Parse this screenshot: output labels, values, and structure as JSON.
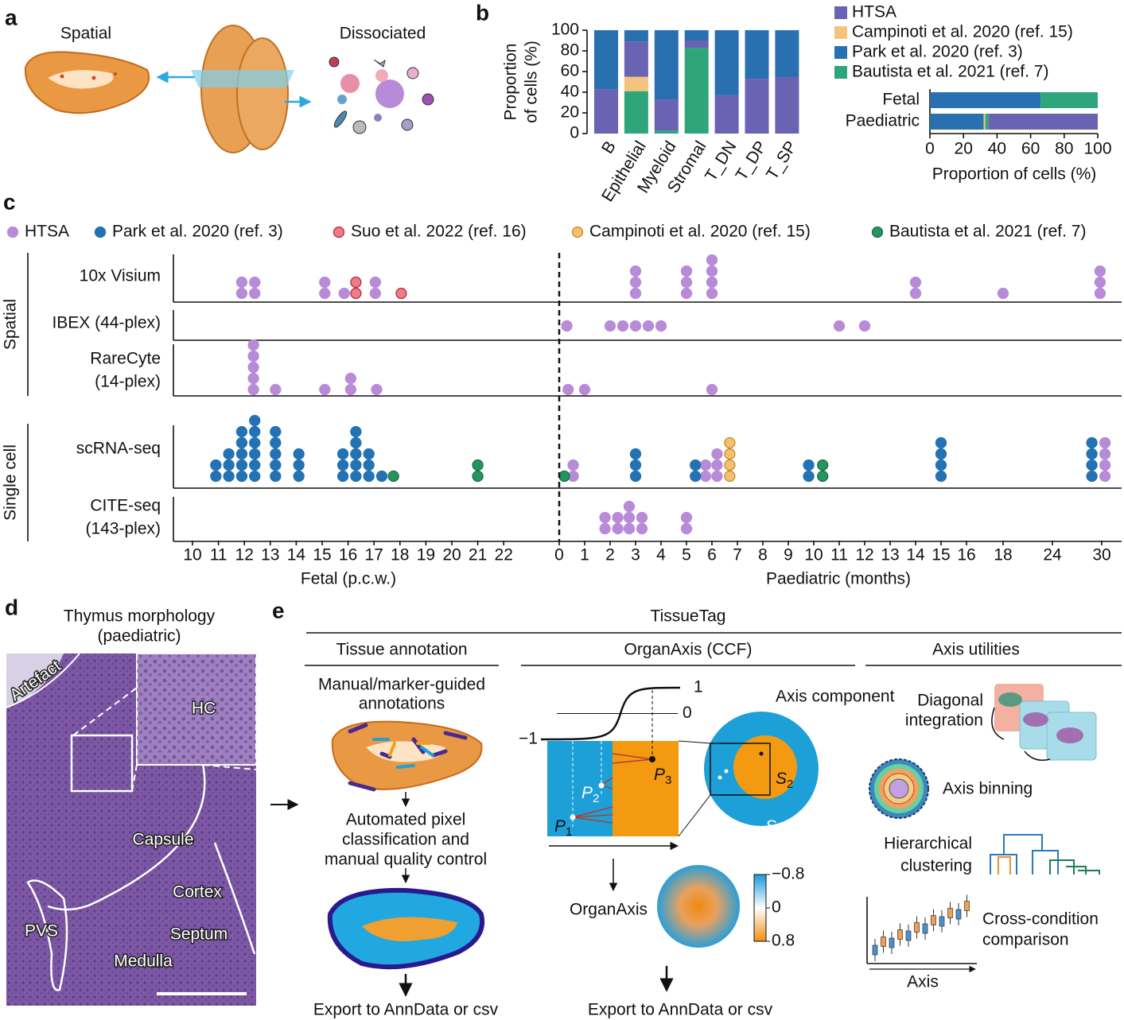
{
  "panel_labels": {
    "a": "a",
    "b": "b",
    "c": "c",
    "d": "d",
    "e": "e"
  },
  "panel_a": {
    "spatial": "Spatial",
    "dissociated": "Dissociated"
  },
  "chart_data": [
    {
      "type": "bar",
      "stacked": true,
      "ylabel": [
        "Proportion",
        "of cells (%)"
      ],
      "categories": [
        "B",
        "Epithelial",
        "Myeloid",
        "Stromal",
        "T_DN",
        "T_DP",
        "T_SP"
      ],
      "series": [
        {
          "name": "HTSA",
          "color": "#6a62b3",
          "values": [
            43,
            34,
            30,
            7,
            37,
            53,
            55
          ]
        },
        {
          "name": "Campinoti et al. 2020 (ref. 15)",
          "color": "#f6c37f",
          "values": [
            0,
            14,
            0,
            0,
            0,
            0,
            0
          ]
        },
        {
          "name": "Park et al. 2020 (ref. 3)",
          "color": "#2870b0",
          "values": [
            57,
            11,
            67,
            10,
            63,
            47,
            45
          ]
        },
        {
          "name": "Bautista et al. 2021 (ref. 7)",
          "color": "#2ea57a",
          "values": [
            0,
            41,
            3,
            83,
            0,
            0,
            0
          ]
        }
      ],
      "ylim": [
        0,
        100
      ],
      "yticks": [
        0,
        20,
        40,
        60,
        80,
        100
      ]
    },
    {
      "type": "hbar",
      "stacked": true,
      "categories": [
        "Fetal",
        "Paediatric"
      ],
      "xlabel": "Proportion of cells (%)",
      "series": [
        {
          "color": "#2870b0",
          "values": [
            66,
            32
          ]
        },
        {
          "color": "#f6c37f",
          "values": [
            0,
            1
          ]
        },
        {
          "color": "#2ea57a",
          "values": [
            34,
            2
          ]
        },
        {
          "color": "#6a62b3",
          "values": [
            0,
            65
          ]
        }
      ],
      "xlim": [
        0,
        100
      ],
      "xticks": [
        0,
        20,
        40,
        60,
        80,
        100
      ]
    },
    {
      "type": "dot",
      "series": [
        {
          "name": "HTSA",
          "color": "#b88bd8",
          "edge": "#b88bd8"
        },
        {
          "name": "Park et al. 2020 (ref. 3)",
          "color": "#2272b4",
          "edge": "#2272b4"
        },
        {
          "name": "Suo et al. 2022 (ref. 16)",
          "color": "#f07a86",
          "edge": "#b0303a"
        },
        {
          "name": "Campinoti et al. 2020 (ref. 15)",
          "color": "#f5c070",
          "edge": "#c98a20"
        },
        {
          "name": "Bautista et al. 2021 (ref. 7)",
          "color": "#239660",
          "edge": "#1a6e45"
        }
      ],
      "groups": [
        {
          "label": "Spatial",
          "rows": [
            {
              "label": [
                "10x Visium"
              ],
              "fetal": [
                [
                  [
                    11.9,
                    2
                  ],
                  [
                    12.4,
                    2
                  ],
                  [
                    15.1,
                    2
                  ],
                  [
                    15.85,
                    1
                  ],
                  [
                    17.05,
                    2
                  ]
                ],
                [],
                [
                  [
                    16.3,
                    2
                  ],
                  [
                    18.05,
                    1
                  ]
                ],
                [],
                []
              ],
              "paediatric": [
                [
                  [
                    3,
                    3
                  ],
                  [
                    5,
                    3
                  ],
                  [
                    6,
                    4
                  ],
                  [
                    14,
                    2
                  ],
                  [
                    18,
                    1
                  ],
                  [
                    29.8,
                    3
                  ]
                ],
                [],
                [],
                [],
                []
              ]
            },
            {
              "label": [
                "IBEX (44-plex)"
              ],
              "fetal": [
                [],
                [],
                [],
                [],
                []
              ],
              "paediatric": [
                [
                  [
                    0.3,
                    1
                  ],
                  [
                    2,
                    1
                  ],
                  [
                    2.5,
                    1
                  ],
                  [
                    3,
                    1
                  ],
                  [
                    3.5,
                    1
                  ],
                  [
                    4,
                    1
                  ],
                  [
                    11,
                    1
                  ],
                  [
                    12,
                    1
                  ]
                ],
                [],
                [],
                [],
                []
              ]
            },
            {
              "label": [
                "RareCyte",
                "(14-plex)"
              ],
              "fetal": [
                [
                  [
                    12.35,
                    5
                  ],
                  [
                    13.2,
                    1
                  ],
                  [
                    15.1,
                    1
                  ],
                  [
                    16.1,
                    2
                  ],
                  [
                    17.1,
                    1
                  ]
                ],
                [],
                [],
                [],
                []
              ],
              "paediatric": [
                [
                  [
                    0.35,
                    1
                  ],
                  [
                    1,
                    1
                  ],
                  [
                    6,
                    1
                  ]
                ],
                [],
                [],
                [],
                []
              ]
            }
          ]
        },
        {
          "label": "Single cell",
          "rows": [
            {
              "label": [
                "scRNA-seq"
              ],
              "fetal": [
                [],
                [
                  [
                    10.9,
                    2
                  ],
                  [
                    11.4,
                    3
                  ],
                  [
                    11.9,
                    5
                  ],
                  [
                    12.4,
                    6
                  ],
                  [
                    13.2,
                    5
                  ],
                  [
                    14.1,
                    3
                  ],
                  [
                    15.8,
                    3
                  ],
                  [
                    16.3,
                    5
                  ],
                  [
                    16.8,
                    3
                  ],
                  [
                    17.3,
                    1
                  ]
                ],
                [],
                [],
                [
                  [
                    17.75,
                    1
                  ],
                  [
                    21,
                    2
                  ]
                ]
              ],
              "paediatric": [
                [
                  [
                    0.55,
                    2
                  ],
                  [
                    5.75,
                    2
                  ],
                  [
                    6.2,
                    3
                  ],
                  [
                    30.4,
                    4
                  ]
                ],
                [
                  [
                    3,
                    3
                  ],
                  [
                    5.35,
                    2
                  ],
                  [
                    9.8,
                    2
                  ],
                  [
                    15,
                    4
                  ],
                  [
                    28.8,
                    4
                  ]
                ],
                [],
                [
                  [
                    6.7,
                    4
                  ]
                ],
                [
                  [
                    0.2,
                    1
                  ],
                  [
                    10.35,
                    2
                  ]
                ]
              ]
            },
            {
              "label": [
                "CITE-seq",
                "(143-plex)"
              ],
              "fetal": [
                [],
                [],
                [],
                [],
                []
              ],
              "paediatric": [
                [
                  [
                    1.8,
                    2
                  ],
                  [
                    2.3,
                    2
                  ],
                  [
                    2.75,
                    3
                  ],
                  [
                    3.25,
                    2
                  ],
                  [
                    5,
                    2
                  ]
                ],
                [],
                [],
                [],
                []
              ]
            }
          ]
        }
      ],
      "fetal_axis": {
        "label": "Fetal (p.c.w.)",
        "ticks": [
          10,
          11,
          12,
          13,
          14,
          15,
          16,
          17,
          18,
          19,
          20,
          21,
          22
        ]
      },
      "paediatric_axis": {
        "label": "Paediatric (months)",
        "ticks": [
          0,
          1,
          2,
          3,
          4,
          5,
          6,
          7,
          8,
          9,
          10,
          11,
          12,
          13,
          14,
          15,
          16,
          18,
          24,
          30
        ]
      }
    }
  ],
  "panel_d": {
    "title": [
      "Thymus morphology",
      "(paediatric)"
    ],
    "labels": {
      "artefact": "Artefact",
      "hc": "HC",
      "capsule": "Capsule",
      "cortex": "Cortex",
      "pvs": "PVS",
      "septum": "Septum",
      "medulla": "Medulla"
    }
  },
  "panel_e": {
    "title": "TissueTag",
    "sections": [
      "Tissue annotation",
      "OrganAxis (CCF)",
      "Axis utilities"
    ],
    "annotation": {
      "step1": [
        "Manual/marker-guided",
        "annotations"
      ],
      "step2": [
        "Automated pixel",
        "classification and",
        "manual quality control"
      ],
      "export": "Export to AnnData or csv"
    },
    "organaxis": {
      "component": "Axis component",
      "curve_ticks": [
        1,
        0,
        {
          "value": -1,
          "label": "−1"
        }
      ],
      "points": [
        {
          "main": "P",
          "sub": "1"
        },
        {
          "main": "P",
          "sub": "2"
        },
        {
          "main": "P",
          "sub": "3"
        }
      ],
      "structures": [
        {
          "main": "S",
          "sub": "1"
        },
        {
          "main": "S",
          "sub": "2"
        }
      ],
      "result": "OrganAxis",
      "colorbar_ticks": [
        {
          "value": -0.8,
          "label": "−0.8"
        },
        0,
        0.8
      ],
      "export": "Export to AnnData or csv"
    },
    "utilities": {
      "diagonal": [
        "Diagonal",
        "integration"
      ],
      "binning": "Axis binning",
      "hierarchical": [
        "Hierarchical",
        "clustering"
      ],
      "cross": [
        "Cross-condition",
        "comparison"
      ],
      "axis": "Axis"
    }
  }
}
